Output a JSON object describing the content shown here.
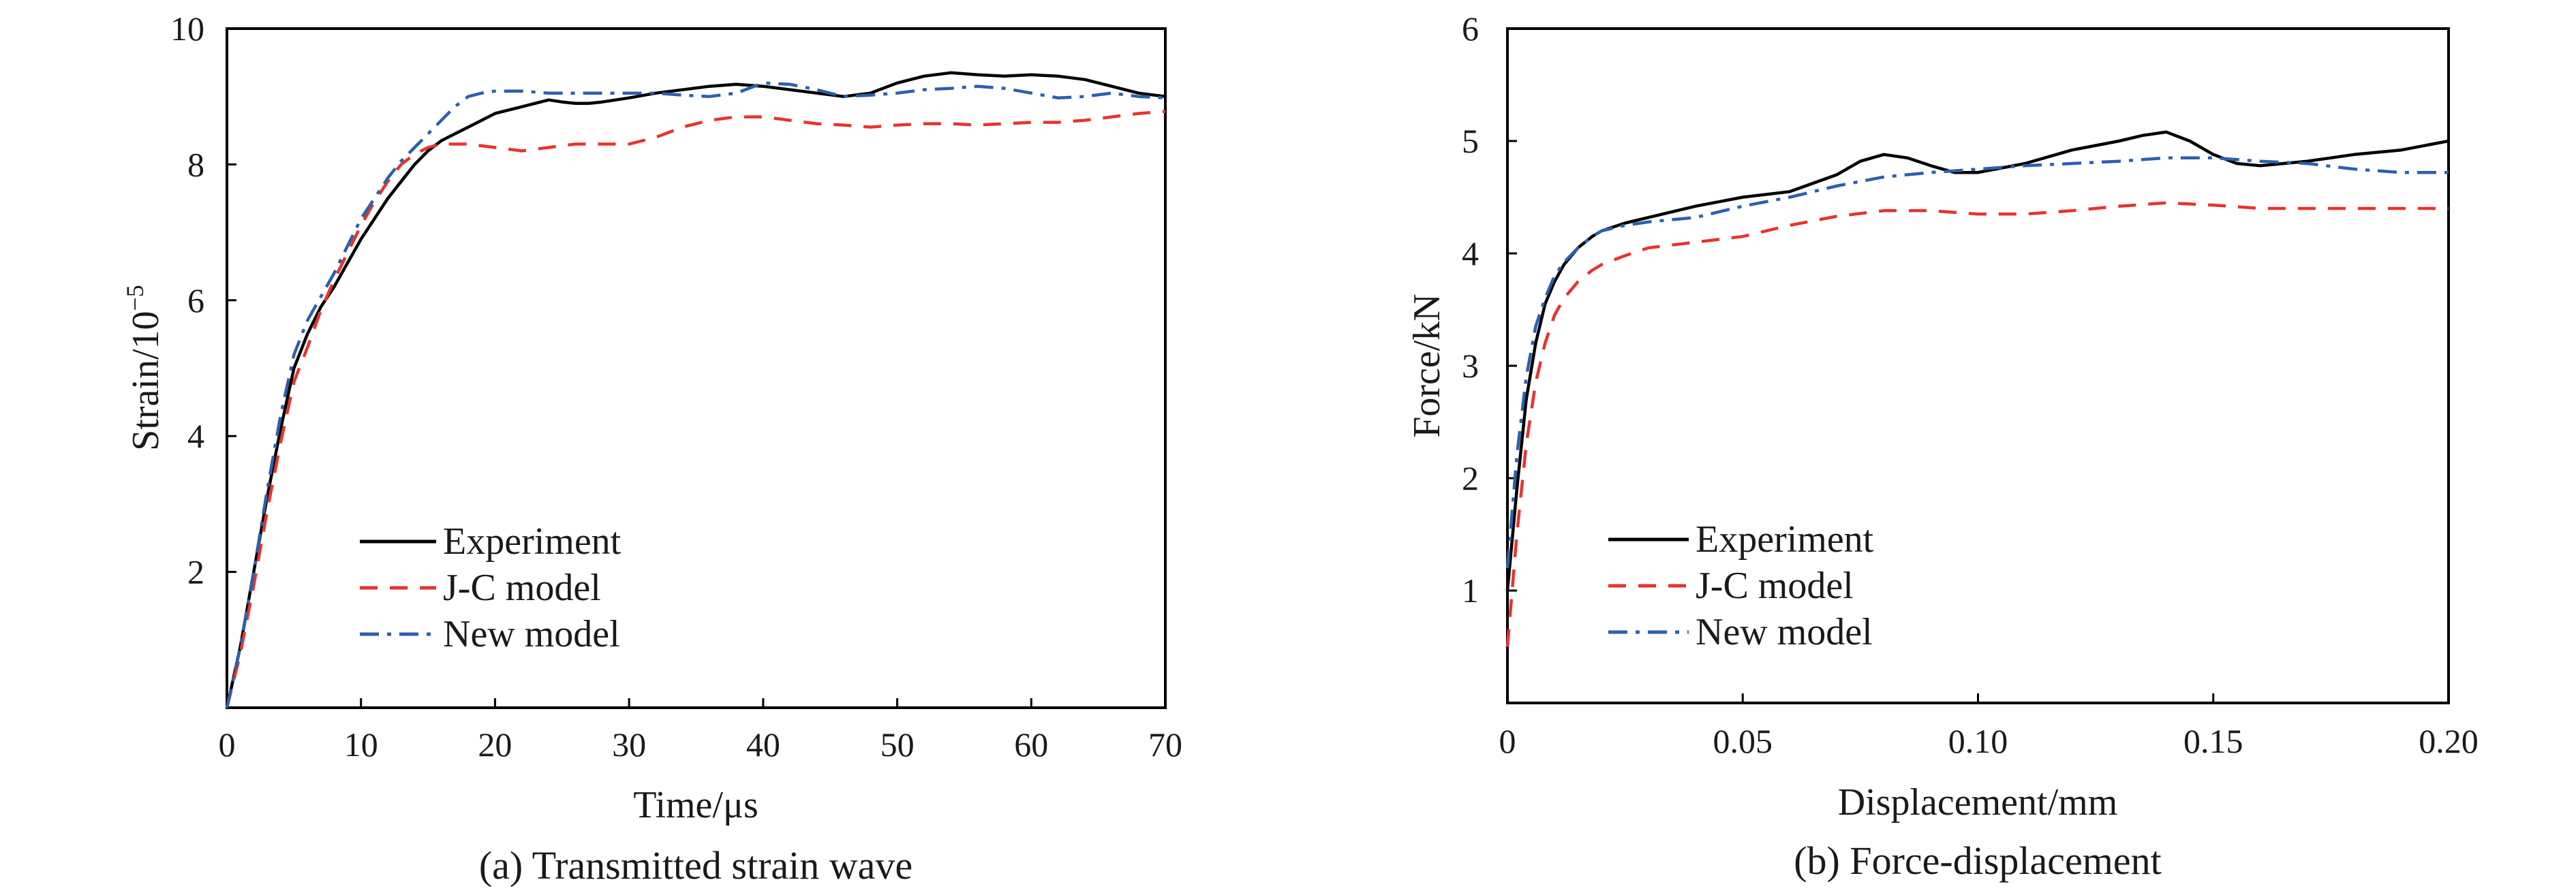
{
  "chart_data": [
    {
      "type": "line",
      "caption": "(a) Transmitted strain wave",
      "xlabel": "Time/μs",
      "ylabel_base": "Strain/10",
      "ylabel_exp": "−5",
      "xlim": [
        0,
        70
      ],
      "ylim": [
        0,
        10
      ],
      "xticks": [
        0,
        10,
        20,
        30,
        40,
        50,
        60,
        70
      ],
      "xtick_labels": [
        "0",
        "10",
        "20",
        "30",
        "40",
        "50",
        "60",
        "70"
      ],
      "yticks": [
        2,
        4,
        6,
        8,
        10
      ],
      "ytick_labels": [
        "2",
        "4",
        "6",
        "8",
        "10"
      ],
      "grid": false,
      "legend_position": "lower-left",
      "series": [
        {
          "name": "Experiment",
          "color": "#000000",
          "dash": "solid",
          "x": [
            0,
            1,
            2,
            3,
            4,
            5,
            6,
            7,
            8,
            9,
            10,
            11,
            12,
            13,
            14,
            15,
            16,
            17,
            18,
            19,
            20,
            21,
            22,
            23,
            24,
            25,
            26,
            27,
            28,
            29,
            30,
            32,
            34,
            36,
            38,
            40,
            42,
            44,
            46,
            48,
            50,
            52,
            54,
            56,
            58,
            60,
            62,
            64,
            66,
            68,
            70
          ],
          "y": [
            0,
            0.9,
            2.0,
            3.1,
            4.1,
            5.0,
            5.5,
            5.9,
            6.2,
            6.55,
            6.9,
            7.2,
            7.5,
            7.75,
            8.0,
            8.2,
            8.35,
            8.45,
            8.55,
            8.65,
            8.75,
            8.8,
            8.85,
            8.9,
            8.95,
            8.92,
            8.9,
            8.9,
            8.92,
            8.95,
            8.98,
            9.05,
            9.1,
            9.15,
            9.18,
            9.15,
            9.1,
            9.05,
            9.0,
            9.05,
            9.2,
            9.3,
            9.35,
            9.32,
            9.3,
            9.32,
            9.3,
            9.25,
            9.15,
            9.05,
            9.0
          ]
        },
        {
          "name": "J-C model",
          "color": "#e8332c",
          "dash": "dashed",
          "x": [
            0,
            1,
            2,
            3,
            4,
            5,
            6,
            7,
            8,
            9,
            10,
            11,
            12,
            13,
            14,
            15,
            16,
            18,
            20,
            22,
            24,
            26,
            28,
            30,
            32,
            34,
            36,
            38,
            40,
            42,
            44,
            46,
            48,
            50,
            52,
            54,
            56,
            58,
            60,
            62,
            64,
            66,
            68,
            70
          ],
          "y": [
            0,
            0.8,
            1.8,
            2.9,
            3.9,
            4.8,
            5.3,
            5.85,
            6.3,
            6.7,
            7.1,
            7.45,
            7.75,
            8.0,
            8.15,
            8.25,
            8.3,
            8.3,
            8.25,
            8.2,
            8.25,
            8.3,
            8.3,
            8.3,
            8.4,
            8.55,
            8.65,
            8.7,
            8.7,
            8.65,
            8.6,
            8.58,
            8.55,
            8.58,
            8.6,
            8.6,
            8.58,
            8.6,
            8.62,
            8.62,
            8.65,
            8.7,
            8.75,
            8.78
          ]
        },
        {
          "name": "New model",
          "color": "#2c5fae",
          "dash": "dashdot",
          "x": [
            0,
            1,
            2,
            3,
            4,
            5,
            6,
            7,
            8,
            9,
            10,
            11,
            12,
            13,
            14,
            15,
            16,
            17,
            18,
            19,
            20,
            22,
            24,
            26,
            28,
            30,
            32,
            34,
            36,
            38,
            40,
            42,
            44,
            46,
            48,
            50,
            52,
            54,
            56,
            58,
            60,
            62,
            64,
            66,
            68,
            70
          ],
          "y": [
            0,
            0.9,
            2.0,
            3.2,
            4.3,
            5.2,
            5.7,
            6.05,
            6.4,
            6.8,
            7.2,
            7.5,
            7.8,
            8.05,
            8.25,
            8.45,
            8.65,
            8.85,
            9.0,
            9.05,
            9.08,
            9.08,
            9.05,
            9.05,
            9.05,
            9.05,
            9.05,
            9.02,
            9.0,
            9.05,
            9.2,
            9.18,
            9.1,
            9.0,
            9.02,
            9.05,
            9.1,
            9.12,
            9.15,
            9.12,
            9.05,
            8.98,
            9.0,
            9.05,
            9.0,
            8.98
          ]
        }
      ]
    },
    {
      "type": "line",
      "caption": "(b) Force-displacement",
      "xlabel": "Displacement/mm",
      "ylabel": "Force/kN",
      "xlim": [
        0,
        0.2
      ],
      "ylim": [
        0,
        6
      ],
      "xticks": [
        0,
        0.05,
        0.1,
        0.15,
        0.2
      ],
      "xtick_labels": [
        "0",
        "0.05",
        "0.10",
        "0.15",
        "0.20"
      ],
      "yticks": [
        1,
        2,
        3,
        4,
        5,
        6
      ],
      "ytick_labels": [
        "1",
        "2",
        "3",
        "4",
        "5",
        "6"
      ],
      "grid": false,
      "legend_position": "lower-left",
      "series": [
        {
          "name": "Experiment",
          "color": "#000000",
          "dash": "solid",
          "x": [
            0,
            0.002,
            0.004,
            0.006,
            0.008,
            0.01,
            0.012,
            0.015,
            0.018,
            0.02,
            0.025,
            0.03,
            0.04,
            0.05,
            0.06,
            0.07,
            0.075,
            0.08,
            0.085,
            0.09,
            0.095,
            0.1,
            0.11,
            0.12,
            0.13,
            0.135,
            0.14,
            0.145,
            0.15,
            0.155,
            0.16,
            0.17,
            0.18,
            0.19,
            0.2
          ],
          "y": [
            1.0,
            1.9,
            2.7,
            3.2,
            3.55,
            3.75,
            3.9,
            4.05,
            4.15,
            4.2,
            4.27,
            4.32,
            4.42,
            4.5,
            4.55,
            4.7,
            4.82,
            4.88,
            4.85,
            4.78,
            4.72,
            4.72,
            4.8,
            4.92,
            5.0,
            5.05,
            5.08,
            5.0,
            4.88,
            4.8,
            4.78,
            4.82,
            4.88,
            4.92,
            5.0
          ]
        },
        {
          "name": "J-C model",
          "color": "#e8332c",
          "dash": "dashed",
          "x": [
            0,
            0.002,
            0.004,
            0.006,
            0.008,
            0.01,
            0.012,
            0.015,
            0.018,
            0.02,
            0.025,
            0.03,
            0.04,
            0.05,
            0.06,
            0.07,
            0.08,
            0.09,
            0.1,
            0.11,
            0.12,
            0.13,
            0.14,
            0.15,
            0.16,
            0.17,
            0.18,
            0.19,
            0.2
          ],
          "y": [
            0.5,
            1.5,
            2.3,
            2.85,
            3.2,
            3.45,
            3.6,
            3.75,
            3.85,
            3.9,
            3.98,
            4.05,
            4.1,
            4.15,
            4.25,
            4.33,
            4.38,
            4.38,
            4.35,
            4.35,
            4.38,
            4.42,
            4.45,
            4.43,
            4.4,
            4.4,
            4.4,
            4.4,
            4.4
          ]
        },
        {
          "name": "New model",
          "color": "#2c5fae",
          "dash": "dashdot",
          "x": [
            0,
            0.002,
            0.004,
            0.006,
            0.008,
            0.01,
            0.012,
            0.015,
            0.018,
            0.02,
            0.025,
            0.03,
            0.04,
            0.05,
            0.06,
            0.07,
            0.08,
            0.09,
            0.1,
            0.11,
            0.12,
            0.13,
            0.14,
            0.15,
            0.16,
            0.17,
            0.18,
            0.19,
            0.2
          ],
          "y": [
            1.2,
            2.2,
            2.9,
            3.35,
            3.6,
            3.8,
            3.92,
            4.05,
            4.15,
            4.2,
            4.25,
            4.28,
            4.32,
            4.42,
            4.5,
            4.6,
            4.68,
            4.72,
            4.75,
            4.78,
            4.8,
            4.82,
            4.85,
            4.85,
            4.82,
            4.8,
            4.75,
            4.72,
            4.72
          ]
        }
      ]
    }
  ]
}
